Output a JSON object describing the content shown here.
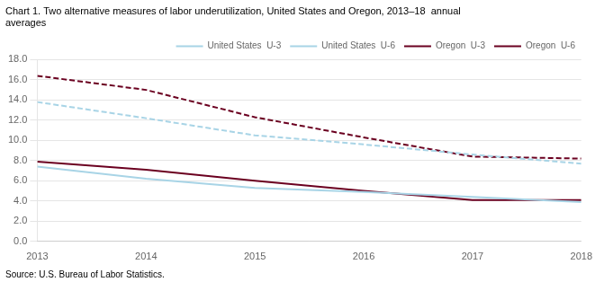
{
  "chart_data": {
    "type": "line",
    "title": [
      "Chart 1. Two alternative measures of labor underutilization, United States and Oregon, 2013–18  annual",
      "averages"
    ],
    "annotations": [
      "Source: U.S. Bureau of Labor Statistics."
    ],
    "x": [
      2013,
      2014,
      2015,
      2016,
      2017,
      2018
    ],
    "series": [
      {
        "name": "United States  U-3",
        "color": "#a8d4e6",
        "line_style": "solid",
        "values": [
          7.4,
          6.2,
          5.3,
          4.9,
          4.4,
          3.9
        ]
      },
      {
        "name": "United States  U-6",
        "color": "#a8d4e6",
        "line_style": "dashed",
        "values": [
          13.8,
          12.2,
          10.5,
          9.6,
          8.6,
          7.7
        ]
      },
      {
        "name": "Oregon  U-3",
        "color": "#6b0020",
        "line_style": "solid",
        "values": [
          7.9,
          7.1,
          6.0,
          5.0,
          4.1,
          4.1
        ]
      },
      {
        "name": "Oregon  U-6",
        "color": "#6b0020",
        "line_style": "dashed",
        "values": [
          16.4,
          15.0,
          12.3,
          10.3,
          8.4,
          8.2
        ]
      }
    ],
    "xlim": [
      2013,
      2018
    ],
    "xticks": [
      2013,
      2014,
      2015,
      2016,
      2017,
      2018
    ],
    "ylim": [
      0,
      18
    ],
    "yticks": [
      {
        "value": 0,
        "label": "0.0"
      },
      {
        "value": 2,
        "label": "2.0"
      },
      {
        "value": 4,
        "label": "4.0"
      },
      {
        "value": 6,
        "label": "6.0"
      },
      {
        "value": 8,
        "label": "8.0"
      },
      {
        "value": 10,
        "label": "10.0"
      },
      {
        "value": 12,
        "label": "12.0"
      },
      {
        "value": 14,
        "label": "14.0"
      },
      {
        "value": 16,
        "label": "16.0"
      },
      {
        "value": 18,
        "label": "18.0"
      }
    ],
    "grid": "y",
    "legend": "upper right"
  }
}
